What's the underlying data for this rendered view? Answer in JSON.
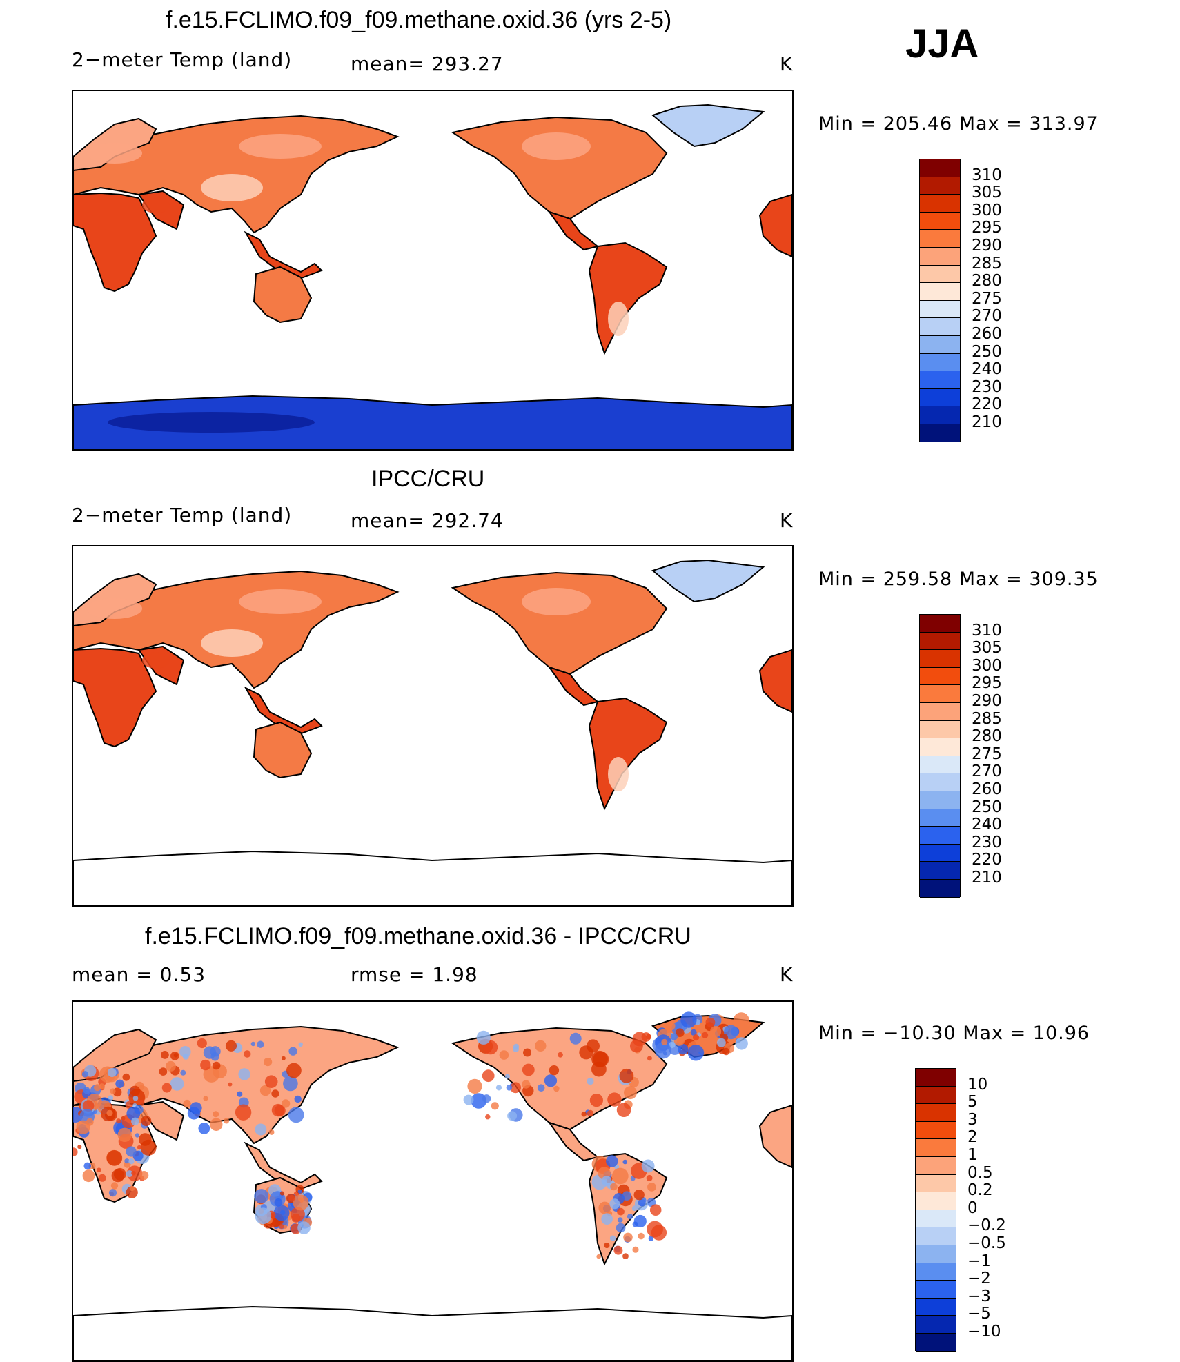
{
  "season": "JJA",
  "panels": [
    {
      "title": "f.e15.FCLIMO.f09_f09.methane.oxid.36 (yrs 2-5)",
      "left_label": "2−meter Temp (land)",
      "mid_label": "mean= 293.27",
      "unit": "K",
      "minmax": "Min = 205.46 Max = 313.97",
      "type": "absolute"
    },
    {
      "title": "IPCC/CRU",
      "left_label": "2−meter Temp (land)",
      "mid_label": "mean= 292.74",
      "unit": "K",
      "minmax": "Min = 259.58 Max = 309.35",
      "type": "absolute"
    },
    {
      "title": "f.e15.FCLIMO.f09_f09.methane.oxid.36 - IPCC/CRU",
      "left_label": "mean =    0.53",
      "mid_label": "rmse =    1.98",
      "unit": "K",
      "minmax": "Min = −10.30 Max =   10.96",
      "type": "difference"
    }
  ],
  "colorbar_abs": {
    "labels": [
      "310",
      "305",
      "300",
      "295",
      "290",
      "285",
      "280",
      "275",
      "270",
      "260",
      "250",
      "240",
      "230",
      "220",
      "210"
    ],
    "colors": [
      "#7f0000",
      "#b21a00",
      "#d93300",
      "#f24d0d",
      "#fa7a3d",
      "#fca37a",
      "#fdc8a8",
      "#fee8d8",
      "#dae8f8",
      "#b8d0f5",
      "#8cb3f0",
      "#5a8ef0",
      "#2b62ee",
      "#0d3fd9",
      "#0527b0",
      "#00127a"
    ]
  },
  "colorbar_diff": {
    "labels": [
      "10",
      "5",
      "3",
      "2",
      "1",
      "0.5",
      "0.2",
      "0",
      "−0.2",
      "−0.5",
      "−1",
      "−2",
      "−3",
      "−5",
      "−10"
    ],
    "colors": [
      "#7f0000",
      "#b21a00",
      "#d93300",
      "#f24d0d",
      "#fa7a3d",
      "#fca37a",
      "#fdc8a8",
      "#fee8d8",
      "#dae8f8",
      "#b8d0f5",
      "#8cb3f0",
      "#5a8ef0",
      "#2b62ee",
      "#0d3fd9",
      "#0527b0",
      "#00127a"
    ]
  },
  "map_colors": {
    "hot": "#e8451a",
    "warm": "#f47a45",
    "mild": "#fba582",
    "cool": "#fdd0b8",
    "ice_blue": "#b8d0f5",
    "antarctic": "#1a3fd0",
    "antarctic_deep": "#0a1f9a",
    "diff_blue": "#4a78e8"
  }
}
